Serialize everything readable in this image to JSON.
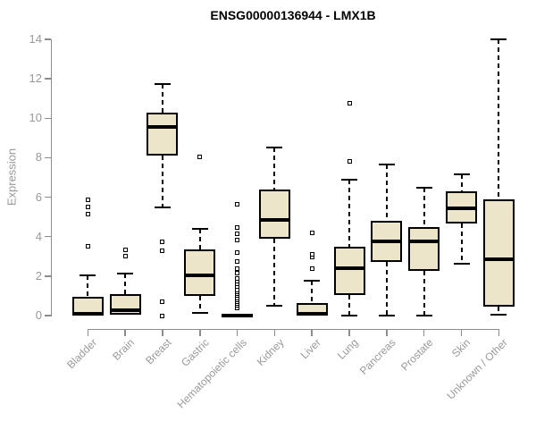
{
  "chart_data": {
    "type": "boxplot",
    "title": "ENSG00000136944 - LMX1B",
    "xlabel": "",
    "ylabel": "Expression",
    "ylim": [
      0,
      14
    ],
    "yticks": [
      0,
      2,
      4,
      6,
      8,
      10,
      12,
      14
    ],
    "grid": "off",
    "legend": "none",
    "box_fill": "#EDE5C9",
    "box_border": "#000000",
    "axis_color": "#8C8C8C",
    "tick_label_color": "#999999",
    "categories": [
      "Bladder",
      "Brain",
      "Breast",
      "Gastric",
      "Hematopoietic cells",
      "Kidney",
      "Liver",
      "Lung",
      "Pancreas",
      "Prostate",
      "Skin",
      "Unknown / Other"
    ],
    "series": [
      {
        "label": "Bladder",
        "whisker_low": 0,
        "q1": 0,
        "median": 0.1,
        "q3": 0.95,
        "whisker_high": 2.05,
        "outliers": [
          3.5,
          5.15,
          5.5,
          5.85
        ]
      },
      {
        "label": "Brain",
        "whisker_low": 0.05,
        "q1": 0.05,
        "median": 0.25,
        "q3": 1.1,
        "whisker_high": 2.15,
        "outliers": [
          3.0,
          3.35
        ]
      },
      {
        "label": "Breast",
        "whisker_low": 5.5,
        "q1": 8.1,
        "median": 9.55,
        "q3": 10.3,
        "whisker_high": 11.75,
        "outliers": [
          0.0,
          0.7,
          3.3,
          3.75
        ]
      },
      {
        "label": "Gastric",
        "whisker_low": 0.15,
        "q1": 1.0,
        "median": 2.05,
        "q3": 3.35,
        "whisker_high": 4.4,
        "outliers": [
          8.05
        ]
      },
      {
        "label": "Hematopoietic cells",
        "whisker_low": 0,
        "q1": 0,
        "median": 0.02,
        "q3": 0.1,
        "whisker_high": 0.1,
        "outliers": [
          0.4,
          0.5,
          0.6,
          0.7,
          0.8,
          0.9,
          1.0,
          1.1,
          1.2,
          1.3,
          1.45,
          1.6,
          1.75,
          1.9,
          2.15,
          2.4,
          2.75,
          3.2,
          3.85,
          4.15,
          4.45,
          5.65
        ]
      },
      {
        "label": "Kidney",
        "whisker_low": 0.5,
        "q1": 3.9,
        "median": 4.85,
        "q3": 6.4,
        "whisker_high": 8.5,
        "outliers": []
      },
      {
        "label": "Liver",
        "whisker_low": 0,
        "q1": 0,
        "median": 0.1,
        "q3": 0.65,
        "whisker_high": 1.75,
        "outliers": [
          2.4,
          2.95,
          3.1,
          4.2
        ]
      },
      {
        "label": "Lung",
        "whisker_low": 0,
        "q1": 1.05,
        "median": 2.4,
        "q3": 3.5,
        "whisker_high": 6.9,
        "outliers": [
          7.8,
          10.75
        ]
      },
      {
        "label": "Pancreas",
        "whisker_low": 0,
        "q1": 2.7,
        "median": 3.75,
        "q3": 4.8,
        "whisker_high": 7.65,
        "outliers": []
      },
      {
        "label": "Prostate",
        "whisker_low": 0,
        "q1": 2.25,
        "median": 3.75,
        "q3": 4.5,
        "whisker_high": 6.5,
        "outliers": []
      },
      {
        "label": "Skin",
        "whisker_low": 2.65,
        "q1": 4.65,
        "median": 5.45,
        "q3": 6.3,
        "whisker_high": 7.15,
        "outliers": []
      },
      {
        "label": "Unknown / Other",
        "whisker_low": 0.05,
        "q1": 0.45,
        "median": 2.85,
        "q3": 5.9,
        "whisker_high": 14.0,
        "outliers": []
      }
    ]
  }
}
